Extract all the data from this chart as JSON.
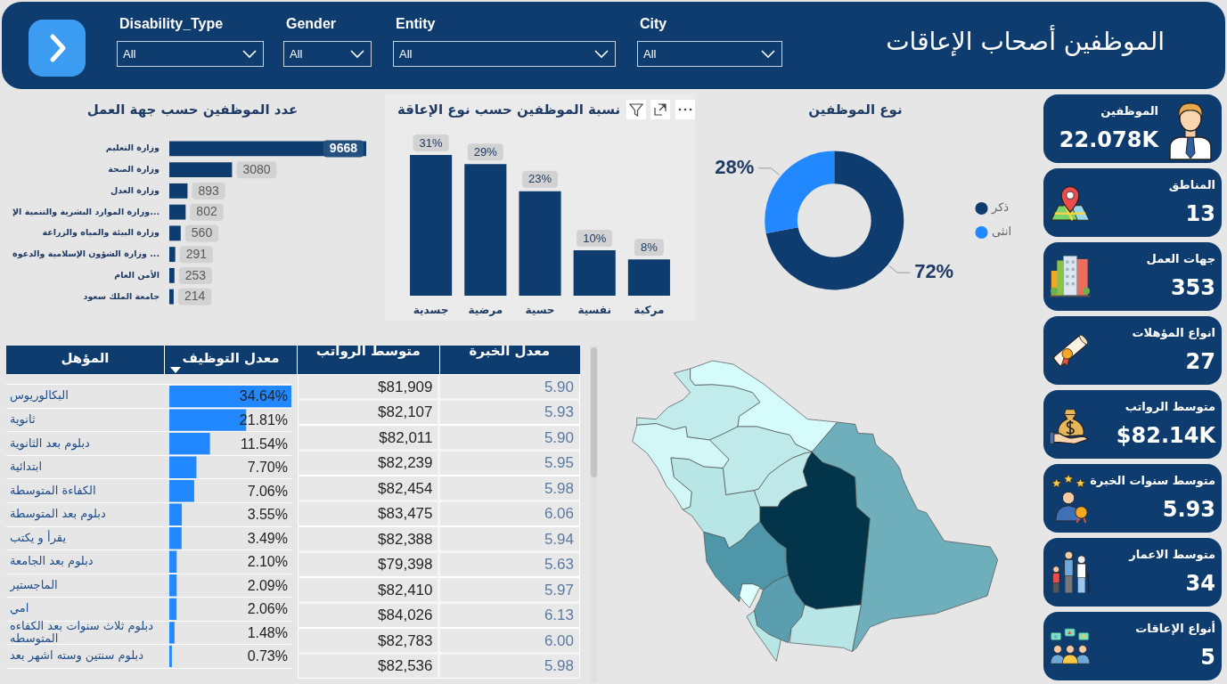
{
  "chart_data": [
    {
      "type": "other",
      "title": "الموظفين أصحاب الإعاقات",
      "annotations": [
        "Disability_Type",
        "All",
        "Gender",
        "All",
        "Entity",
        "All",
        "City",
        "All"
      ]
    },
    {
      "type": "bar",
      "orientation": "horizontal",
      "title": "عدد الموظفين حسب جهة العمل",
      "categories": [
        "وزارة التعليم",
        "وزارة الصحة",
        "وزارة العدل",
        "وزارة الموارد البشرية والتنمية الإ...",
        "وزارة البيئة والمياه والزراعة",
        "وزارة الشؤون الإسلامية والدعوة ...",
        "الأمن العام",
        "جامعة الملك سعود"
      ],
      "values": [
        9668,
        3080,
        893,
        802,
        560,
        291,
        253,
        214
      ],
      "color": "#0f3c6e",
      "data_labels": true
    },
    {
      "type": "bar",
      "title": "نسبة الموظفين حسب نوع الإعاقة",
      "categories": [
        "جسدية",
        "مرضية",
        "حسية",
        "نفسية",
        "مركبة"
      ],
      "values": [
        31,
        29,
        23,
        10,
        8
      ],
      "value_labels": [
        "31%",
        "29%",
        "23%",
        "10%",
        "8%"
      ],
      "color": "#0f3c6e"
    },
    {
      "type": "donut",
      "title": "نوع الموظفين",
      "categories": [
        "ذكر",
        "انثى"
      ],
      "values": [
        72,
        28
      ],
      "value_labels": [
        "72%",
        "28%"
      ],
      "colors": [
        "#0f3c6e",
        "#2188ff"
      ],
      "legend": "right"
    },
    {
      "type": "other",
      "title": "الموظفين",
      "annotations": [
        "22.078K"
      ]
    },
    {
      "type": "other",
      "title": "المناطق",
      "annotations": [
        "13"
      ]
    },
    {
      "type": "other",
      "title": "جهات العمل",
      "annotations": [
        "353"
      ]
    },
    {
      "type": "other",
      "title": "انواع المؤهلات",
      "annotations": [
        "27"
      ]
    },
    {
      "type": "other",
      "title": "متوسط الرواتب",
      "annotations": [
        "$82.14K"
      ]
    },
    {
      "type": "other",
      "title": "متوسط سنوات الخبرة",
      "annotations": [
        "5.93"
      ]
    },
    {
      "type": "other",
      "title": "متوسط الاعمار",
      "annotations": [
        "34"
      ]
    },
    {
      "type": "other",
      "title": "أنواع الإعاقات",
      "annotations": [
        "5"
      ]
    },
    {
      "type": "bar",
      "orientation": "horizontal",
      "xlabel": "معدل التوظيف",
      "ylabel": "المؤهل",
      "categories": [
        "البكالوريوس",
        "ثانوية",
        "دبلوم بعد الثانوية",
        "ابتدائية",
        "الكفاءة المتوسطة",
        "دبلوم بعد المتوسطة",
        "يقرأ و يكتب",
        "دبلوم بعد الجامعة",
        "الماجستير",
        "امي",
        "دبلوم ثلاث سنوات بعد الكفاءه المتوسطه",
        "دبلوم سنتين وسته اشهر بعد"
      ],
      "values": [
        34.64,
        21.81,
        11.54,
        7.7,
        7.06,
        3.55,
        3.49,
        2.1,
        2.09,
        2.06,
        1.48,
        0.73
      ],
      "value_labels": [
        "34.64%",
        "21.81%",
        "11.54%",
        "7.70%",
        "7.06%",
        "3.55%",
        "3.49%",
        "2.10%",
        "2.09%",
        "2.06%",
        "1.48%",
        "0.73%"
      ],
      "color": "#2188ff",
      "grid": "y"
    },
    {
      "type": "heatmap",
      "categories": [
        "متوسط الرواتب",
        "معدل الخبرة"
      ],
      "y_categories": [
        null,
        null,
        null,
        null,
        null,
        null,
        null,
        null,
        null,
        null,
        null,
        null
      ],
      "cells": [
        [
          81909,
          5.9
        ],
        [
          82107,
          5.93
        ],
        [
          82011,
          5.9
        ],
        [
          82239,
          5.95
        ],
        [
          82454,
          5.98
        ],
        [
          83475,
          6.06
        ],
        [
          82388,
          5.94
        ],
        [
          79398,
          5.63
        ],
        [
          82410,
          5.97
        ],
        [
          84026,
          6.13
        ],
        [
          82783,
          6.0
        ],
        [
          82536,
          5.98
        ]
      ],
      "cell_labels": [
        [
          "$81,909",
          "5.90"
        ],
        [
          "$82,107",
          "5.93"
        ],
        [
          "$82,011",
          "5.90"
        ],
        [
          "$82,239",
          "5.95"
        ],
        [
          "$82,454",
          "5.98"
        ],
        [
          "$83,475",
          "6.06"
        ],
        [
          "$82,388",
          "5.94"
        ],
        [
          "$79,398",
          "5.63"
        ],
        [
          "$82,410",
          "5.97"
        ],
        [
          "$84,026",
          "6.13"
        ],
        [
          "$82,783",
          "6.00"
        ],
        [
          "$82,536",
          "5.98"
        ]
      ]
    }
  ]
}
